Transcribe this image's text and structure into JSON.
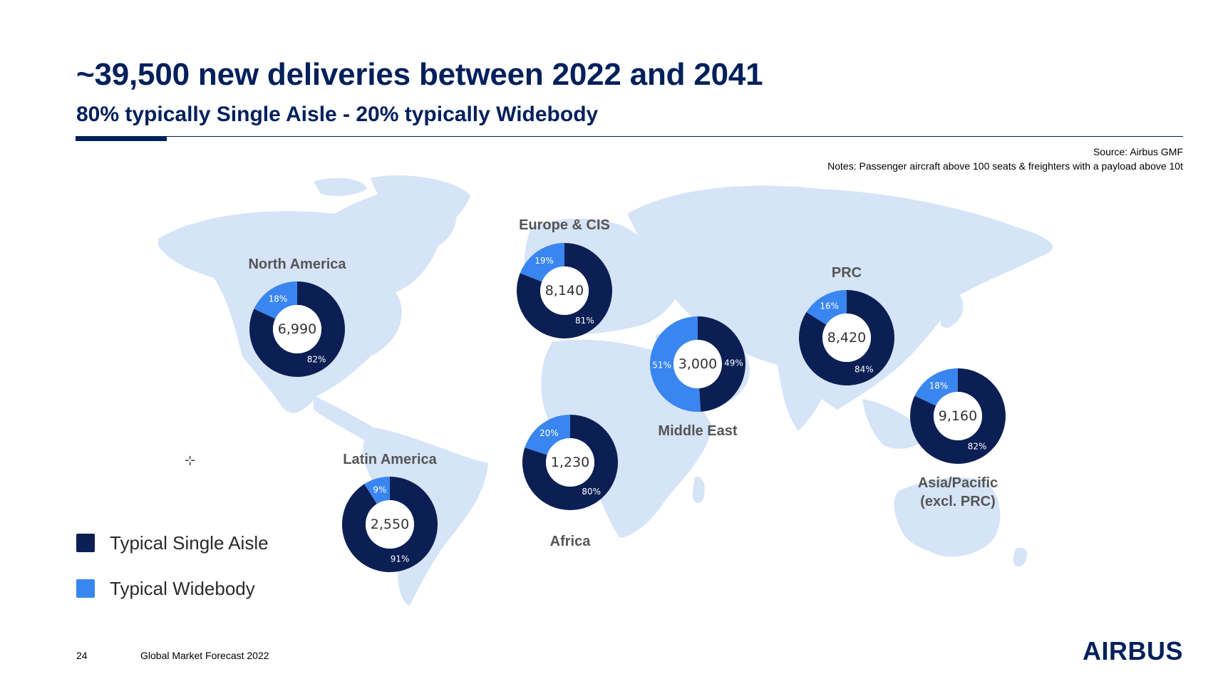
{
  "header": {
    "title": "~39,500 new deliveries between 2022 and 2041",
    "subtitle": "80% typically Single Aisle - 20% typically Widebody"
  },
  "source": {
    "line1": "Source: Airbus GMF",
    "line2": "Notes: Passenger aircraft above 100 seats & freighters with a payload above 10t"
  },
  "legend": {
    "items": [
      {
        "label": "Typical Single Aisle",
        "color": "#0b1f54"
      },
      {
        "label": "Typical Widebody",
        "color": "#3a86f0"
      }
    ]
  },
  "footer": {
    "page": "24",
    "doc": "Global Market Forecast 2022",
    "logo": "AIRBUS"
  },
  "colors": {
    "single_aisle": "#0b1f54",
    "widebody": "#3a86f0",
    "map_land": "#d6e4f8",
    "region_label": "#555555"
  },
  "chart_data": {
    "type": "pie",
    "series": [
      {
        "name": "North America",
        "total": "6,990",
        "single_aisle_pct": 82,
        "widebody_pct": 18
      },
      {
        "name": "Europe & CIS",
        "total": "8,140",
        "single_aisle_pct": 81,
        "widebody_pct": 19
      },
      {
        "name": "PRC",
        "total": "8,420",
        "single_aisle_pct": 84,
        "widebody_pct": 16
      },
      {
        "name": "Middle East",
        "total": "3,000",
        "single_aisle_pct": 49,
        "widebody_pct": 51
      },
      {
        "name": "Asia/Pacific (excl. PRC)",
        "total": "9,160",
        "single_aisle_pct": 82,
        "widebody_pct": 18
      },
      {
        "name": "Africa",
        "total": "1,230",
        "single_aisle_pct": 80,
        "widebody_pct": 20
      },
      {
        "name": "Latin America",
        "total": "2,550",
        "single_aisle_pct": 91,
        "widebody_pct": 9
      }
    ]
  }
}
